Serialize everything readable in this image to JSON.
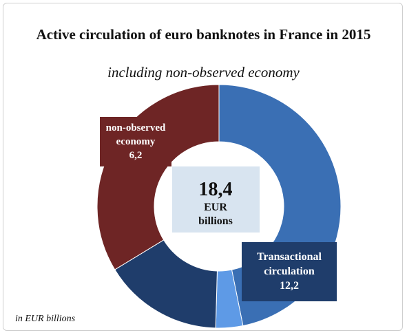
{
  "chart_data": {
    "type": "pie",
    "style": "donut",
    "title": "Active circulation of euro banknotes in France in 2015",
    "subtitle": "including non-observed economy",
    "footnote": "in EUR billions",
    "center_label": {
      "value": "18,4",
      "unit_line1": "EUR",
      "unit_line2": "billions"
    },
    "slices": [
      {
        "value": 8.62,
        "color": "#3a6fb4"
      },
      {
        "value": 0.66,
        "color": "#5e9ae6"
      },
      {
        "value": 2.92,
        "color": "#1f3d6b"
      },
      {
        "value": 6.2,
        "color": "#6e2525"
      }
    ],
    "labels": [
      {
        "lines": [
          "Transactional",
          "circulation",
          "12,2"
        ],
        "color": "#1f3d6b"
      },
      {
        "lines": [
          "non-observed",
          "economy",
          "6,2"
        ],
        "color": "#6e2525"
      }
    ]
  }
}
